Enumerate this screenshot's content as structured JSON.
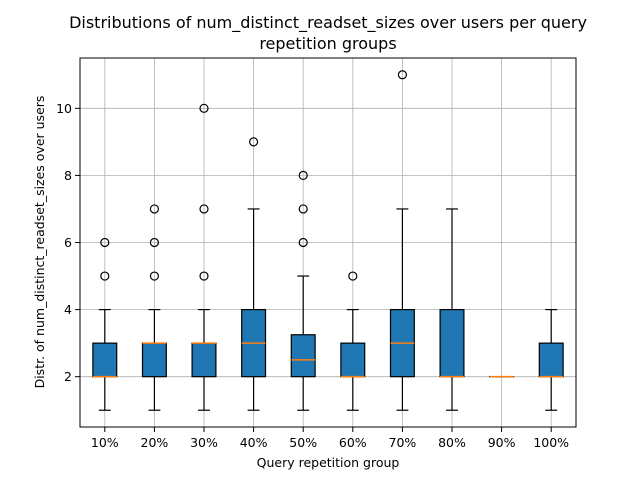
{
  "chart_data": {
    "type": "box",
    "title_lines": [
      "Distributions of num_distinct_readset_sizes over users per query",
      "repetition groups"
    ],
    "xlabel": "Query repetition group",
    "ylabel": "Distr. of num_distinct_readset_sizes over users",
    "categories": [
      "10%",
      "20%",
      "30%",
      "40%",
      "50%",
      "60%",
      "70%",
      "80%",
      "90%",
      "100%"
    ],
    "ylim": [
      0.5,
      11.5
    ],
    "yticks": [
      2,
      4,
      6,
      8,
      10
    ],
    "grid": true,
    "box_color": "#1f77b4",
    "median_color": "#ff7f0e",
    "boxes": [
      {
        "category": "10%",
        "whisker_low": 1,
        "q1": 2,
        "median": 2,
        "q3": 3,
        "whisker_high": 4,
        "outliers": [
          5,
          6
        ]
      },
      {
        "category": "20%",
        "whisker_low": 1,
        "q1": 2,
        "median": 3,
        "q3": 3,
        "whisker_high": 4,
        "outliers": [
          5,
          6,
          7
        ]
      },
      {
        "category": "30%",
        "whisker_low": 1,
        "q1": 2,
        "median": 3,
        "q3": 3,
        "whisker_high": 4,
        "outliers": [
          5,
          7,
          10
        ]
      },
      {
        "category": "40%",
        "whisker_low": 1,
        "q1": 2,
        "median": 3,
        "q3": 4,
        "whisker_high": 7,
        "outliers": [
          9
        ]
      },
      {
        "category": "50%",
        "whisker_low": 1,
        "q1": 2,
        "median": 2.5,
        "q3": 3.25,
        "whisker_high": 5,
        "outliers": [
          6,
          7,
          8
        ]
      },
      {
        "category": "60%",
        "whisker_low": 1,
        "q1": 2,
        "median": 2,
        "q3": 3,
        "whisker_high": 4,
        "outliers": [
          5
        ]
      },
      {
        "category": "70%",
        "whisker_low": 1,
        "q1": 2,
        "median": 3,
        "q3": 4,
        "whisker_high": 7,
        "outliers": [
          11
        ]
      },
      {
        "category": "80%",
        "whisker_low": 1,
        "q1": 2,
        "median": 2,
        "q3": 4,
        "whisker_high": 7,
        "outliers": []
      },
      {
        "category": "90%",
        "whisker_low": 2,
        "q1": 2,
        "median": 2,
        "q3": 2,
        "whisker_high": 2,
        "outliers": []
      },
      {
        "category": "100%",
        "whisker_low": 1,
        "q1": 2,
        "median": 2,
        "q3": 3,
        "whisker_high": 4,
        "outliers": []
      }
    ]
  }
}
